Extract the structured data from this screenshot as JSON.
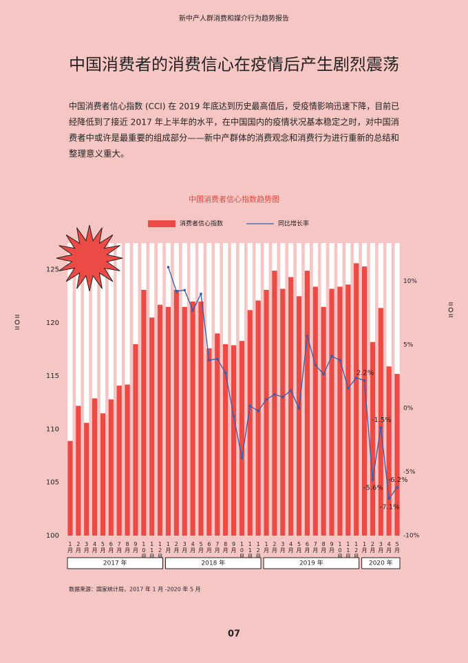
{
  "header": "新中产人群消费和媒介行为趋势报告",
  "title": "中国消费者的消费信心在疫情后产生剧烈震荡",
  "paragraph_lines": [
    "中国消费者信心指数 (CCI) 在 2019 年底达到历史最高值后，受疫情影响迅速下降，目前已",
    "经降低到了接近 2017 年上半年的水平，在中国国内的疫情状况基本稳定之时，对中国消",
    "费者中或许是最重要的组成部分——新中产群体的消费观念和消费行为进行重新的总结和",
    "整理意义重大。"
  ],
  "chart_data": {
    "type": "bar-line",
    "title": "中国消费者信心指数趋势图",
    "categories": [
      "1月",
      "2月",
      "3月",
      "4月",
      "5月",
      "6月",
      "7月",
      "8月",
      "9月",
      "10月",
      "11月",
      "12月",
      "1月",
      "2月",
      "3月",
      "4月",
      "5月",
      "6月",
      "7月",
      "8月",
      "9月",
      "10月",
      "11月",
      "12月",
      "1月",
      "2月",
      "3月",
      "4月",
      "5月",
      "6月",
      "7月",
      "8月",
      "9月",
      "10月",
      "11月",
      "12月",
      "1月",
      "2月",
      "3月",
      "4月",
      "5月"
    ],
    "year_groups": [
      "2017 年",
      "2018 年",
      "2019 年",
      "2020 年"
    ],
    "series": [
      {
        "name": "消费者信心指数",
        "color": "#ec4b45",
        "axis": "y",
        "values": [
          108.9,
          112.2,
          110.6,
          112.9,
          111.5,
          112.8,
          114.1,
          114.2,
          118.0,
          123.1,
          120.5,
          121.7,
          121.5,
          123.1,
          121.5,
          122.0,
          122.0,
          117.6,
          119.0,
          118.0,
          117.9,
          118.3,
          121.2,
          122.1,
          123.1,
          124.9,
          123.2,
          124.3,
          122.5,
          124.9,
          123.4,
          121.5,
          123.2,
          123.4,
          123.6,
          125.6,
          125.3,
          118.2,
          121.4,
          115.9,
          115.2
        ]
      },
      {
        "name": "同比增长率",
        "color": "#2e5fb0",
        "axis": "y2",
        "values": [
          null,
          null,
          null,
          null,
          null,
          null,
          null,
          null,
          null,
          null,
          null,
          null,
          11.1,
          9.2,
          9.3,
          7.7,
          9.0,
          3.8,
          3.9,
          2.8,
          -0.6,
          -3.9,
          0.2,
          -0.2,
          0.7,
          1.1,
          0.9,
          1.4,
          0.0,
          5.7,
          3.4,
          2.7,
          4.1,
          3.8,
          1.6,
          2.4,
          2.2,
          -5.6,
          -1.5,
          -7.1,
          -6.2
        ],
        "value_labels": [
          null,
          null,
          null,
          null,
          null,
          null,
          null,
          null,
          null,
          null,
          null,
          null,
          null,
          null,
          null,
          null,
          null,
          null,
          null,
          null,
          null,
          null,
          null,
          null,
          null,
          null,
          null,
          null,
          null,
          null,
          null,
          null,
          null,
          null,
          null,
          null,
          "2.2%",
          "-5.6%",
          "-1.5%",
          "-7.1%",
          "-6.2%"
        ]
      }
    ],
    "ylim": [
      100,
      127.5
    ],
    "yticks": [
      100,
      105,
      110,
      115,
      120,
      125
    ],
    "y2lim": [
      -10,
      13
    ],
    "y2ticks": [
      {
        "value": -10,
        "label": "-10%"
      },
      {
        "value": -5,
        "label": "-5%"
      },
      {
        "value": 0,
        "label": "0%"
      },
      {
        "value": 5,
        "label": "5%"
      },
      {
        "value": 10,
        "label": "10%"
      }
    ],
    "source": "数据来源：国家统计局，2017 年 1 月 -2020 年 5 月"
  },
  "page_number": "07"
}
